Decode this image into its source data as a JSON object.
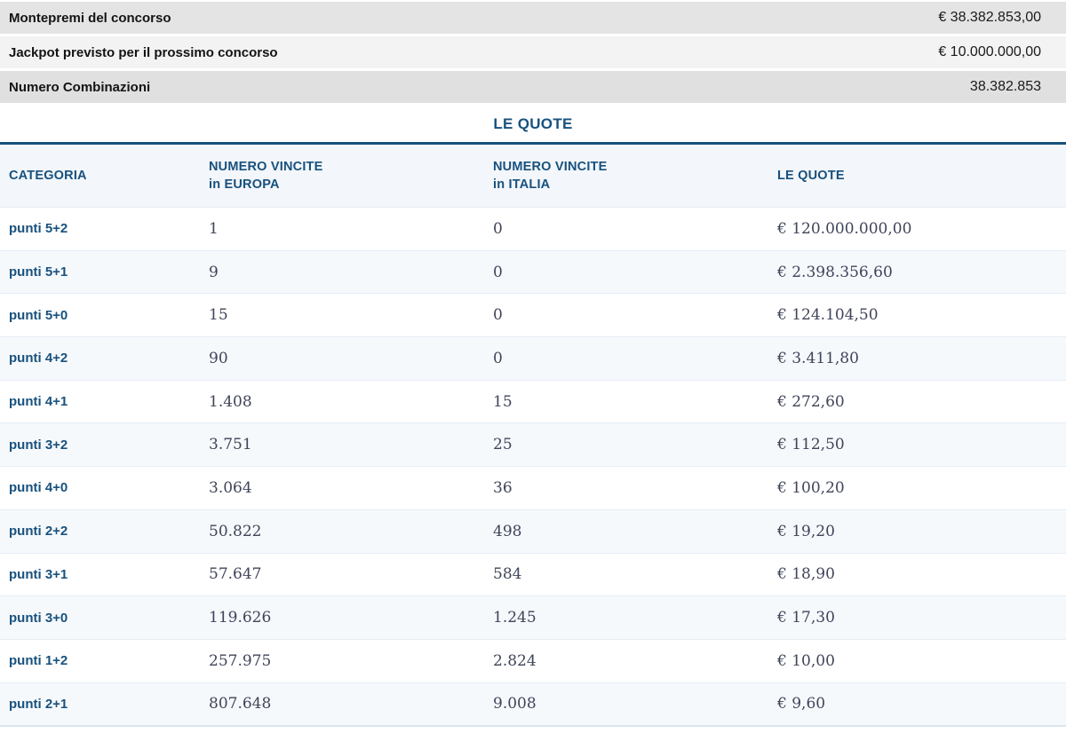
{
  "summary": {
    "rows": [
      {
        "label": "Montepremi del concorso",
        "value": "€ 38.382.853,00"
      },
      {
        "label": "Jackpot previsto per il prossimo concorso",
        "value": "€ 10.000.000,00"
      },
      {
        "label": "Numero Combinazioni",
        "value": "38.382.853"
      }
    ]
  },
  "section_title": "LE QUOTE",
  "table": {
    "headers": {
      "categoria": "CATEGORIA",
      "vincite_europa_line1": "NUMERO VINCITE",
      "vincite_europa_line2": "in EUROPA",
      "vincite_italia_line1": "NUMERO VINCITE",
      "vincite_italia_line2": "in ITALIA",
      "quote": "LE QUOTE"
    },
    "rows": [
      {
        "categoria": "punti 5+2",
        "vincite_europa": "1",
        "vincite_italia": "0",
        "quota": "€ 120.000.000,00"
      },
      {
        "categoria": "punti 5+1",
        "vincite_europa": "9",
        "vincite_italia": "0",
        "quota": "€ 2.398.356,60"
      },
      {
        "categoria": "punti 5+0",
        "vincite_europa": "15",
        "vincite_italia": "0",
        "quota": "€ 124.104,50"
      },
      {
        "categoria": "punti 4+2",
        "vincite_europa": "90",
        "vincite_italia": "0",
        "quota": "€ 3.411,80"
      },
      {
        "categoria": "punti 4+1",
        "vincite_europa": "1.408",
        "vincite_italia": "15",
        "quota": "€ 272,60"
      },
      {
        "categoria": "punti 3+2",
        "vincite_europa": "3.751",
        "vincite_italia": "25",
        "quota": "€ 112,50"
      },
      {
        "categoria": "punti 4+0",
        "vincite_europa": "3.064",
        "vincite_italia": "36",
        "quota": "€ 100,20"
      },
      {
        "categoria": "punti 2+2",
        "vincite_europa": "50.822",
        "vincite_italia": "498",
        "quota": "€ 19,20"
      },
      {
        "categoria": "punti 3+1",
        "vincite_europa": "57.647",
        "vincite_italia": "584",
        "quota": "€ 18,90"
      },
      {
        "categoria": "punti 3+0",
        "vincite_europa": "119.626",
        "vincite_italia": "1.245",
        "quota": "€ 17,30"
      },
      {
        "categoria": "punti 1+2",
        "vincite_europa": "257.975",
        "vincite_italia": "2.824",
        "quota": "€ 10,00"
      },
      {
        "categoria": "punti 2+1",
        "vincite_europa": "807.648",
        "vincite_italia": "9.008",
        "quota": "€ 9,60"
      }
    ]
  },
  "colors": {
    "accent_blue": "#17517e",
    "value_text": "#3f4459"
  }
}
